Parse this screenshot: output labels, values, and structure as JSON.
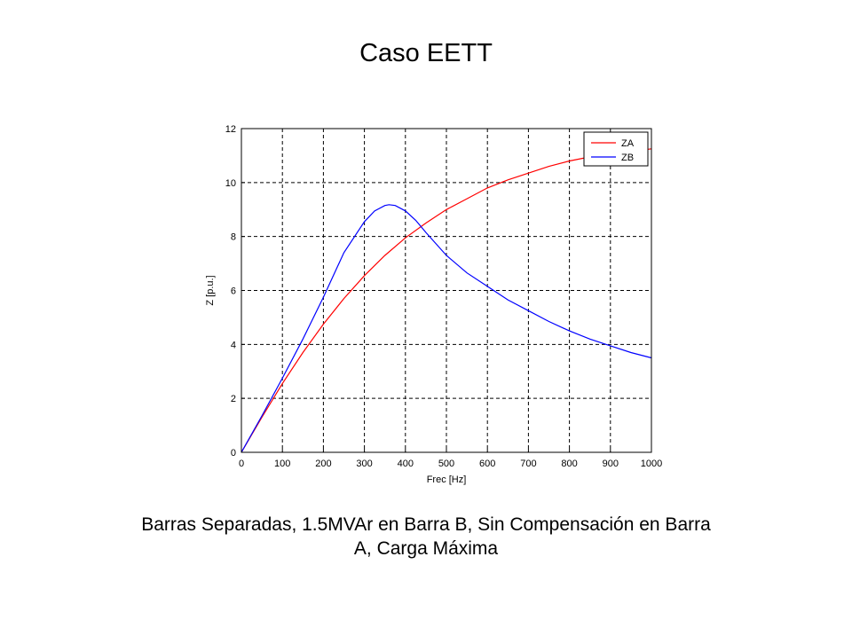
{
  "slide": {
    "title": "Caso EETT",
    "caption_line1": "Barras Separadas, 1.5MVAr en Barra B, Sin Compensación en Barra",
    "caption_line2": "A, Carga Máxima"
  },
  "chart_data": {
    "type": "line",
    "title": "",
    "xlabel": "Frec [Hz]",
    "ylabel": "Z [p.u.]",
    "xlim": [
      0,
      1000
    ],
    "ylim": [
      0,
      12
    ],
    "xticks": [
      0,
      100,
      200,
      300,
      400,
      500,
      600,
      700,
      800,
      900,
      1000
    ],
    "yticks": [
      0,
      2,
      4,
      6,
      8,
      10,
      12
    ],
    "grid": true,
    "legend_position": "top-right",
    "series": [
      {
        "name": "ZA",
        "color": "#ff0000",
        "x": [
          0,
          50,
          100,
          150,
          200,
          250,
          300,
          350,
          400,
          450,
          500,
          550,
          600,
          650,
          700,
          750,
          800,
          850,
          900,
          950,
          1000
        ],
        "y": [
          0,
          1.3,
          2.55,
          3.7,
          4.75,
          5.7,
          6.55,
          7.3,
          7.95,
          8.5,
          9.0,
          9.4,
          9.8,
          10.1,
          10.35,
          10.6,
          10.8,
          10.95,
          11.05,
          11.15,
          11.25
        ]
      },
      {
        "name": "ZB",
        "color": "#0000ff",
        "x": [
          0,
          50,
          100,
          150,
          200,
          250,
          300,
          325,
          350,
          360,
          375,
          400,
          425,
          450,
          500,
          550,
          600,
          650,
          700,
          750,
          800,
          850,
          900,
          950,
          1000
        ],
        "y": [
          0,
          1.35,
          2.75,
          4.2,
          5.75,
          7.4,
          8.55,
          8.95,
          9.15,
          9.18,
          9.15,
          8.95,
          8.6,
          8.15,
          7.3,
          6.65,
          6.15,
          5.65,
          5.25,
          4.85,
          4.5,
          4.2,
          3.95,
          3.7,
          3.5
        ]
      }
    ]
  }
}
